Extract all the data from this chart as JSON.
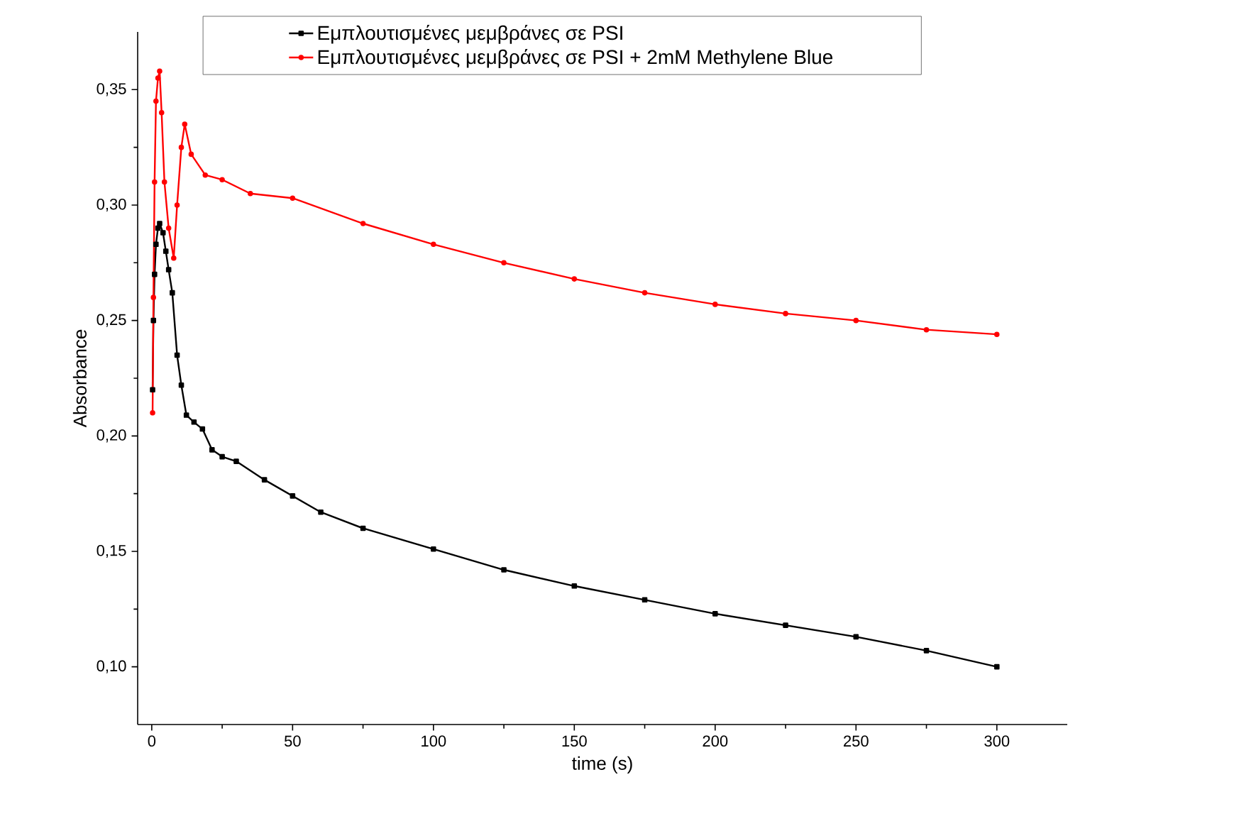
{
  "chart_data": {
    "type": "line",
    "xlabel": "time (s)",
    "ylabel": "Absorbance",
    "xlim": [
      -5,
      325
    ],
    "ylim": [
      0.075,
      0.375
    ],
    "xticks": [
      0,
      50,
      100,
      150,
      200,
      250,
      300
    ],
    "yticks": [
      {
        "value": 0.1,
        "label": "0,10"
      },
      {
        "value": 0.15,
        "label": "0,15"
      },
      {
        "value": 0.2,
        "label": "0,20"
      },
      {
        "value": 0.25,
        "label": "0,25"
      },
      {
        "value": 0.3,
        "label": "0,30"
      },
      {
        "value": 0.35,
        "label": "0,35"
      }
    ],
    "legend": "top right",
    "line_style": "solid",
    "series": [
      {
        "name": "Εμπλουτισμένες μεμβράνες σε PSI",
        "color": "#000000",
        "marker": "square",
        "x": [
          0.3,
          0.6,
          1,
          1.5,
          2.2,
          2.8,
          4,
          5,
          6,
          7.3,
          9,
          10.5,
          12.3,
          15,
          18,
          21.4,
          25,
          30,
          40,
          50,
          60,
          75,
          100,
          125,
          150,
          175,
          200,
          225,
          250,
          275,
          300
        ],
        "values": [
          0.22,
          0.25,
          0.27,
          0.283,
          0.29,
          0.292,
          0.288,
          0.28,
          0.272,
          0.262,
          0.235,
          0.222,
          0.209,
          0.206,
          0.203,
          0.194,
          0.191,
          0.189,
          0.181,
          0.174,
          0.167,
          0.16,
          0.151,
          0.142,
          0.135,
          0.129,
          0.123,
          0.118,
          0.113,
          0.107,
          0.1
        ]
      },
      {
        "name": "Εμπλουτισμένες μεμβράνες σε PSI + 2mM Methylene Blue",
        "color": "#ff0000",
        "marker": "circle",
        "x": [
          0.3,
          0.6,
          1,
          1.5,
          2.2,
          2.8,
          3.5,
          4.5,
          6,
          7.8,
          9,
          10.5,
          11.7,
          14,
          19,
          25,
          35,
          50,
          75,
          100,
          125,
          150,
          175,
          200,
          225,
          250,
          275,
          300
        ],
        "values": [
          0.21,
          0.26,
          0.31,
          0.345,
          0.355,
          0.358,
          0.34,
          0.31,
          0.29,
          0.277,
          0.3,
          0.325,
          0.335,
          0.322,
          0.313,
          0.311,
          0.305,
          0.303,
          0.292,
          0.283,
          0.275,
          0.268,
          0.262,
          0.257,
          0.253,
          0.25,
          0.246,
          0.244
        ]
      }
    ]
  }
}
